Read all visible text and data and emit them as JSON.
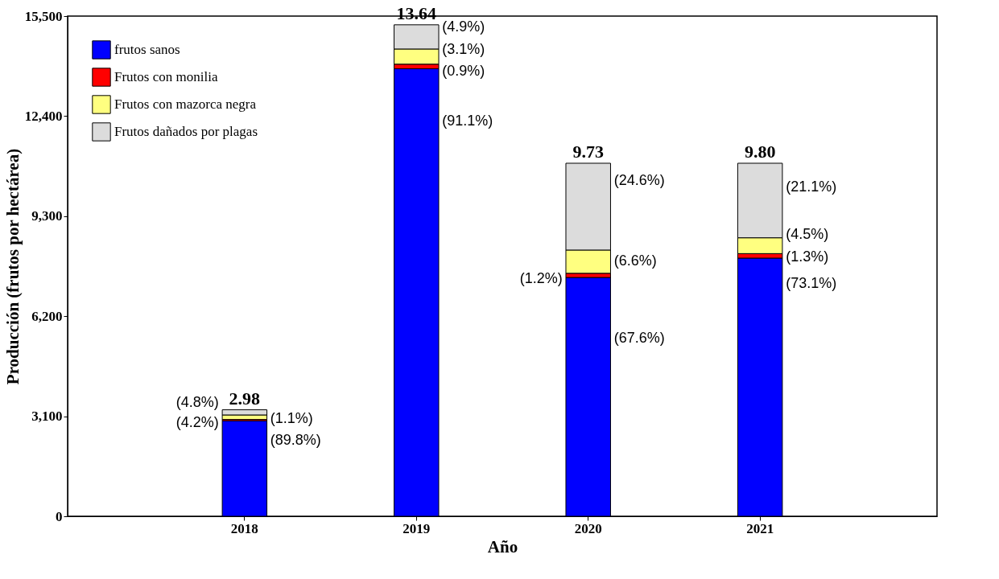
{
  "chart_data": {
    "type": "bar",
    "stacked": true,
    "xlabel": "Año",
    "ylabel": "Producción (frutos por hectárea)",
    "categories": [
      "2018",
      "2019",
      "2020",
      "2021"
    ],
    "series": [
      {
        "name": "frutos sanos",
        "color": "#0000ff",
        "values": [
          2960,
          13870,
          7400,
          8000
        ]
      },
      {
        "name": "Frutos con monilia",
        "color": "#ff0000",
        "values": [
          40,
          140,
          130,
          140
        ]
      },
      {
        "name": "Frutos con mazorca negra",
        "color": "#ffff80",
        "values": [
          140,
          470,
          720,
          490
        ]
      },
      {
        "name": "Frutos dañados por plagas",
        "color": "#dcdcdc",
        "values": [
          160,
          750,
          2690,
          2310
        ]
      }
    ],
    "annotations": [
      {
        "text": "(4.8%)",
        "x": "2018",
        "y": 3300
      },
      {
        "text": "(4.2%)",
        "x": "2018",
        "y": 3140
      },
      {
        "text": "(1.1%)",
        "x": "2018",
        "y": 3000
      },
      {
        "text": "(89.8%)",
        "x": "2018",
        "y": 2960
      },
      {
        "text": "(4.9%)",
        "x": "2019",
        "y": 15230
      },
      {
        "text": "(3.1%)",
        "x": "2019",
        "y": 14480
      },
      {
        "text": "(0.9%)",
        "x": "2019",
        "y": 14010
      },
      "(91.1%)",
      {
        "text": "(24.6%)",
        "x": "2020",
        "y": 10940
      },
      {
        "text": "(6.6%)",
        "x": "2020",
        "y": 8250
      },
      {
        "text": "(1.2%)",
        "x": "2020",
        "y": 7530
      },
      "(67.6%)",
      {
        "text": "(21.1%)",
        "x": "2021",
        "y": 10940
      },
      {
        "text": "(4.5%)",
        "x": "2021",
        "y": 8630
      },
      {
        "text": "(1.3%)",
        "x": "2021",
        "y": 8140
      },
      {
        "text": "(73.1%)",
        "x": "2021",
        "y": 8000
      },
      {
        "text": "2.98",
        "x": "2018",
        "y": 3300
      },
      {
        "text": "13.64",
        "x": "2019",
        "y": 15230
      },
      {
        "text": "9.73",
        "x": "2020",
        "y": 10940
      },
      {
        "text": "9.80",
        "x": "2021",
        "y": 10940
      }
    ],
    "ylim": [
      0,
      15500
    ],
    "yticks": [
      {
        "value": 0,
        "label": "0"
      },
      {
        "value": 3100,
        "label": "3,100"
      },
      {
        "value": 6200,
        "label": "6,200"
      },
      {
        "value": 9300,
        "label": "9,300"
      },
      {
        "value": 12400,
        "label": "12,400"
      },
      {
        "value": 15500,
        "label": "15,500"
      }
    ],
    "grid": false,
    "legend": "top left"
  }
}
